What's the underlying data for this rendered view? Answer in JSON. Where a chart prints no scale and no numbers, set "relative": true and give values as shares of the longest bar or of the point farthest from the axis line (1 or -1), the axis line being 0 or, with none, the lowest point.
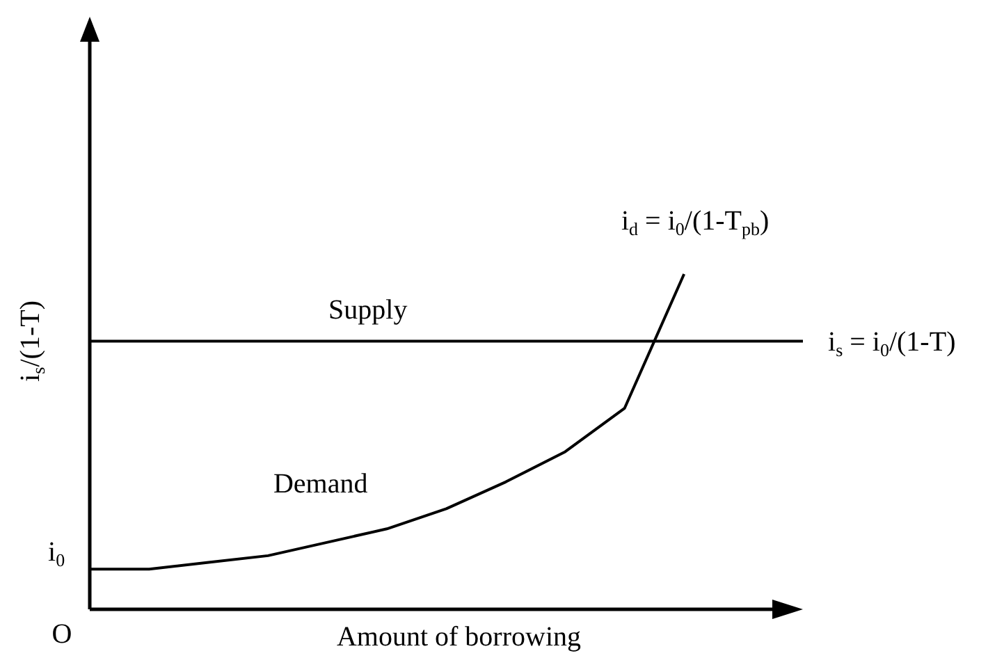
{
  "chart_data": {
    "type": "line",
    "relative": true,
    "xlabel": "Amount of borrowing",
    "ylabel": "i$_{s}$/(1-T)",
    "marker": "none",
    "line_style": "solid",
    "categories": [
      null,
      null,
      null,
      null,
      null,
      null,
      null,
      null,
      null,
      null,
      null,
      null,
      null
    ],
    "series": [
      {
        "name": "Demand",
        "color": "#000000",
        "values": [
          0.12,
          0.12,
          0.14,
          0.16,
          0.2,
          0.24,
          0.3,
          0.38,
          0.47,
          0.6,
          1.0,
          null,
          null
        ]
      }
    ],
    "ref_lines": [
      {
        "axis": "y",
        "value": 0.8,
        "label": "Supply",
        "color": "#000000"
      }
    ],
    "annotations": [
      "i$_{d}$ = i$_{0}$/(1-T$_{pb}$)",
      "i$_{s}$ = i$_{0}$/(1-T)",
      "i$_{0}$",
      "O"
    ]
  }
}
